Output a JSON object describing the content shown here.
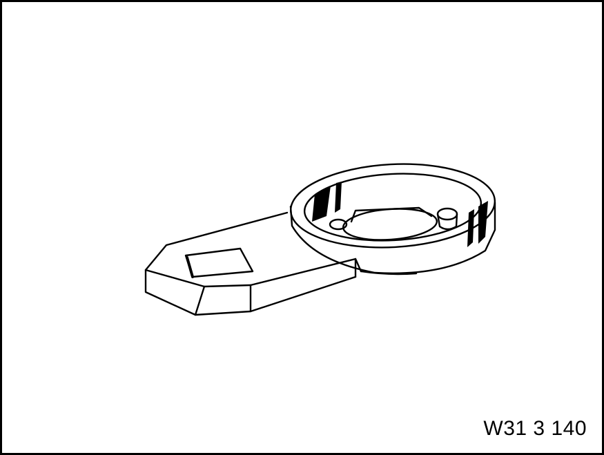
{
  "figure": {
    "code": "W31 3 140",
    "subject_icon": "wrench-tool-icon",
    "colors": {
      "line": "#000000",
      "background": "#ffffff"
    }
  }
}
